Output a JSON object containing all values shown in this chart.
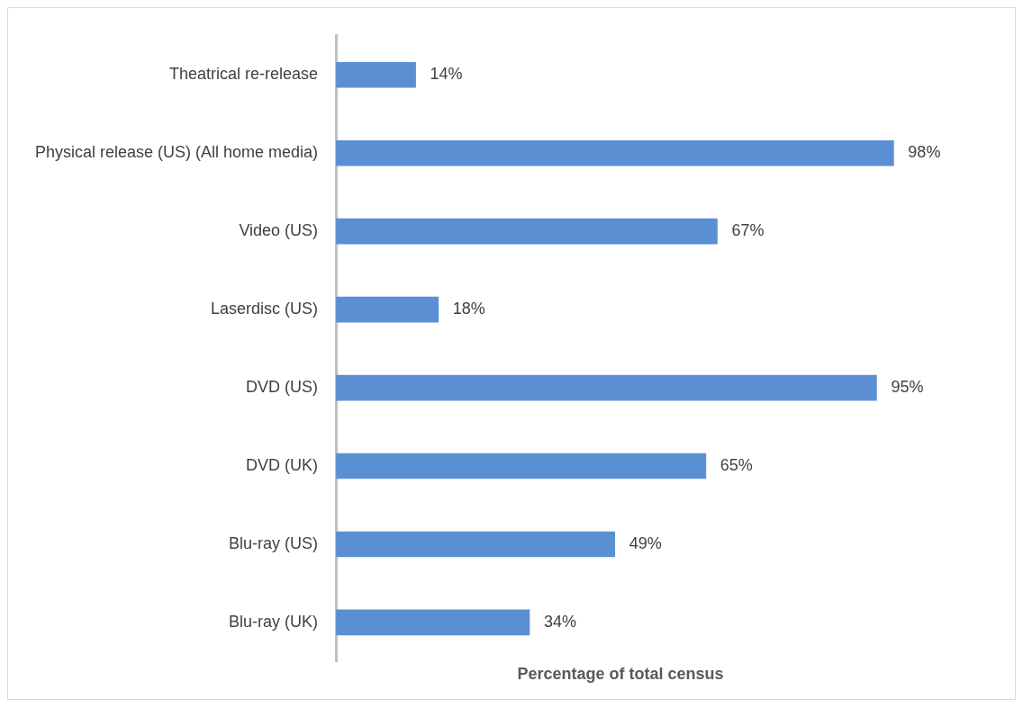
{
  "chart_data": {
    "type": "bar",
    "orientation": "horizontal",
    "xlabel": "Percentage of total census",
    "categories": [
      "Theatrical re-release",
      "Physical release (US) (All home media)",
      "Video (US)",
      "Laserdisc (US)",
      "DVD (US)",
      "DVD (UK)",
      "Blu-ray (US)",
      "Blu-ray (UK)"
    ],
    "values": [
      14,
      98,
      67,
      18,
      95,
      65,
      49,
      34
    ],
    "value_labels": [
      "14%",
      "98%",
      "67%",
      "18%",
      "95%",
      "65%",
      "49%",
      "34%"
    ],
    "color": "#5b8fd4",
    "grid": false,
    "legend": false
  }
}
